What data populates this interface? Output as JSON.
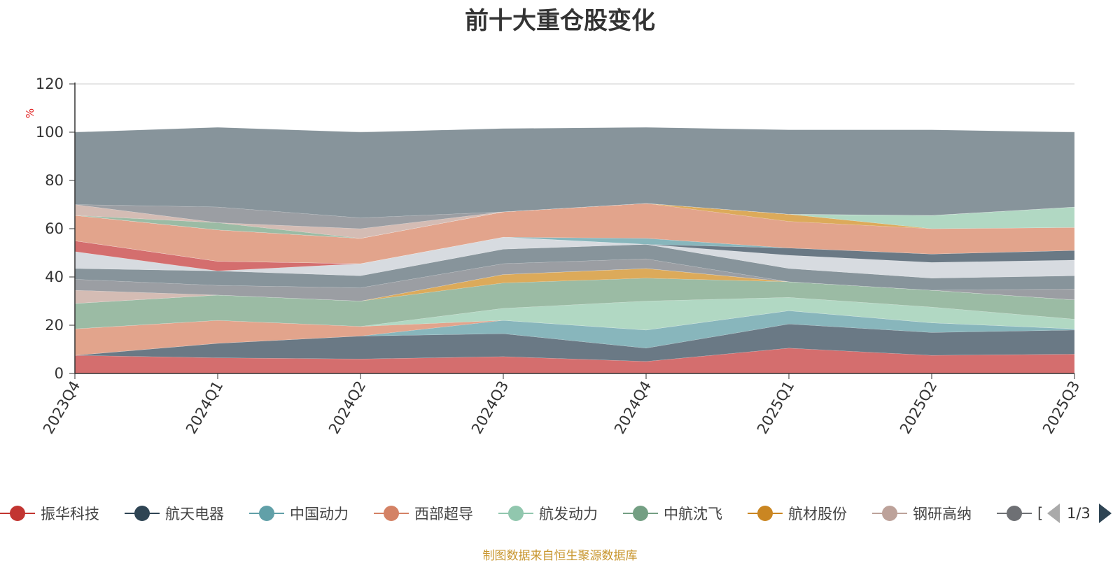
{
  "chart_data": {
    "type": "area",
    "stacked": true,
    "title": "前十大重仓股变化",
    "ylabel": "%",
    "ylim": [
      0,
      120
    ],
    "yticks": [
      0,
      20,
      40,
      60,
      80,
      100,
      120
    ],
    "categories": [
      "2023Q4",
      "2024Q1",
      "2024Q2",
      "2024Q3",
      "2024Q4",
      "2025Q1",
      "2025Q2",
      "2025Q3"
    ],
    "grid": true,
    "legend_position": "bottom",
    "series": [
      {
        "name": "振华科技",
        "color": "#d46e6e",
        "values": [
          7.5,
          6.5,
          6,
          7,
          5,
          10.5,
          7.5,
          8
        ]
      },
      {
        "name": "航天电器",
        "color": "#6a7985",
        "values": [
          0,
          6,
          9.5,
          9.5,
          5.5,
          10,
          9.5,
          10
        ]
      },
      {
        "name": "中国动力",
        "color": "#88b6bc",
        "values": [
          0,
          0,
          0,
          5.5,
          7.5,
          5.5,
          4,
          0.5
        ]
      },
      {
        "name": "西部超导",
        "color": "#e2a48c",
        "values": [
          11,
          9.5,
          4,
          0,
          0,
          0,
          0,
          0
        ]
      },
      {
        "name": "航发动力",
        "color": "#b1d8c3",
        "values": [
          0,
          0,
          0,
          5,
          12,
          5.5,
          6.5,
          4
        ]
      },
      {
        "name": "中航沈飞",
        "color": "#9bbba4",
        "values": [
          10.5,
          10.5,
          10.5,
          10.5,
          9.5,
          6.5,
          7,
          8
        ]
      },
      {
        "name": "航材股份",
        "color": "#dcaa5a",
        "values": [
          0,
          0,
          0,
          3.5,
          4,
          0,
          0,
          0
        ]
      },
      {
        "name": "钢研高纳",
        "color": "#d4bcb4",
        "values": [
          5.5,
          0,
          0,
          0,
          0,
          0,
          0,
          0
        ]
      },
      {
        "name": "",
        "color": "#9b9ea3",
        "values": [
          4.5,
          4,
          5.5,
          4.5,
          4,
          0,
          0,
          4.5
        ]
      },
      {
        "name": "",
        "color": "#87949b",
        "values": [
          4.5,
          6,
          5,
          6,
          6,
          5.5,
          5,
          5.5
        ]
      },
      {
        "name": "",
        "color": "#d7dbe0",
        "values": [
          7,
          0,
          5,
          5,
          0,
          5.5,
          6.5,
          6.5
        ]
      },
      {
        "name": "",
        "color": "#d46e6e",
        "values": [
          4.5,
          4,
          0,
          0,
          0,
          0,
          0,
          0
        ]
      },
      {
        "name": "",
        "color": "#6a7985",
        "values": [
          0,
          0,
          0,
          0,
          0,
          3,
          3.5,
          4
        ]
      },
      {
        "name": "",
        "color": "#88b6bc",
        "values": [
          0,
          0,
          0,
          0,
          2.5,
          0,
          0,
          0
        ]
      },
      {
        "name": "",
        "color": "#e2a48c",
        "values": [
          10.5,
          13,
          10.5,
          10.5,
          14.5,
          11,
          10.5,
          9.5
        ]
      },
      {
        "name": "",
        "color": "#dcaa5a",
        "values": [
          0,
          0,
          0,
          0,
          0,
          3,
          0,
          0
        ]
      },
      {
        "name": "",
        "color": "#b1d8c3",
        "values": [
          0,
          0,
          0,
          0,
          0,
          0,
          5.5,
          8.5
        ]
      },
      {
        "name": "",
        "color": "#9bbba4",
        "values": [
          0,
          3,
          0,
          0,
          0,
          0,
          0,
          0
        ]
      },
      {
        "name": "",
        "color": "#d4bcb4",
        "values": [
          4.5,
          0,
          4,
          0,
          0,
          0,
          0,
          0
        ]
      },
      {
        "name": "",
        "color": "#9b9ea3",
        "values": [
          0,
          6.5,
          4.5,
          0,
          0,
          0,
          0,
          0
        ]
      },
      {
        "name": "",
        "color": "#87949b",
        "values": [
          30,
          33,
          35.5,
          34.5,
          31.5,
          35,
          35.5,
          31
        ]
      }
    ]
  },
  "legend": {
    "items": [
      {
        "label": "振华科技",
        "color": "#c23531"
      },
      {
        "label": "航天电器",
        "color": "#2f4554"
      },
      {
        "label": "中国动力",
        "color": "#61a0a8"
      },
      {
        "label": "西部超导",
        "color": "#d48265"
      },
      {
        "label": "航发动力",
        "color": "#91c7ae"
      },
      {
        "label": "中航沈飞",
        "color": "#749f83"
      },
      {
        "label": "航材股份",
        "color": "#ca8622"
      },
      {
        "label": "钢研高纳",
        "color": "#bda29a"
      },
      {
        "label": "[",
        "color": "#6e7074"
      }
    ],
    "page": "1/3"
  },
  "source_note": "制图数据来自恒生聚源数据库"
}
